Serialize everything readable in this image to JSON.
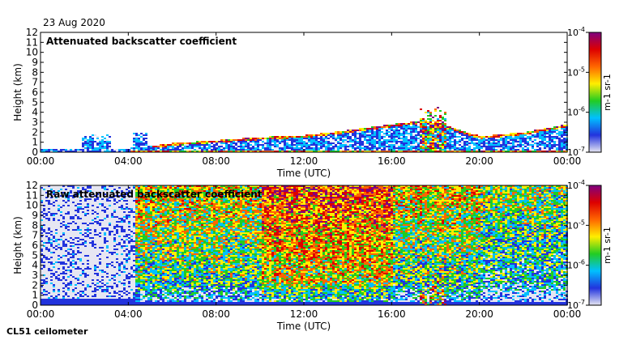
{
  "figure": {
    "date": "23 Aug 2020",
    "instrument": "CL51 ceilometer"
  },
  "chart_data": [
    {
      "type": "heatmap",
      "title": "Attenuated backscatter coefficient",
      "xlabel": "Time (UTC)",
      "ylabel": "Height (km)",
      "x_ticks": [
        "00:00",
        "04:00",
        "08:00",
        "12:00",
        "16:00",
        "20:00",
        "00:00"
      ],
      "x_range_hours": [
        0,
        24
      ],
      "y_ticks": [
        0,
        1,
        2,
        3,
        4,
        5,
        6,
        7,
        8,
        9,
        10,
        11,
        12
      ],
      "ylim": [
        0,
        12
      ],
      "colorbar": {
        "scale": "log",
        "range": [
          "1e-7",
          "1e-4"
        ],
        "labels": [
          "10^-7",
          "10^-6",
          "10^-5",
          "10^-4"
        ],
        "units": "m^-1 sr^-1",
        "colors": [
          "#e6e6f2",
          "#2233dd",
          "#00c0ff",
          "#22cc22",
          "#ffee00",
          "#ff6600",
          "#dd0000",
          "#800080"
        ]
      },
      "boundary_layer_top_km": [
        [
          0,
          0.3
        ],
        [
          4,
          0.4
        ],
        [
          6,
          0.9
        ],
        [
          8,
          1.2
        ],
        [
          10,
          1.5
        ],
        [
          12,
          1.7
        ],
        [
          14,
          2.2
        ],
        [
          16,
          2.8
        ],
        [
          17.5,
          3.2
        ],
        [
          18.5,
          2.6
        ],
        [
          20,
          1.6
        ],
        [
          22,
          2.0
        ],
        [
          24,
          2.8
        ]
      ],
      "low_aerosol_patches": [
        {
          "start_hour": 1.8,
          "end_hour": 3.2,
          "top_km": 1.8
        },
        {
          "start_hour": 4.1,
          "end_hour": 4.8,
          "top_km": 2.3
        }
      ],
      "cloud_events": [
        {
          "start_hour": 17.2,
          "end_hour": 18.4,
          "base_km": 0.1,
          "top_km": 4.8
        }
      ]
    },
    {
      "type": "heatmap",
      "title": "Raw attenuated backscatter coefficient",
      "xlabel": "Time (UTC)",
      "ylabel": "Height (km)",
      "x_ticks": [
        "00:00",
        "04:00",
        "08:00",
        "12:00",
        "16:00",
        "20:00",
        "00:00"
      ],
      "x_range_hours": [
        0,
        24
      ],
      "y_ticks": [
        0,
        1,
        2,
        3,
        4,
        5,
        6,
        7,
        8,
        9,
        10,
        11,
        12
      ],
      "ylim": [
        0,
        12
      ],
      "colorbar": {
        "scale": "log",
        "range": [
          "1e-7",
          "1e-4"
        ],
        "labels": [
          "10^-7",
          "10^-6",
          "10^-5",
          "10^-4"
        ],
        "units": "m^-1 sr^-1",
        "colors": [
          "#e6e6f2",
          "#2233dd",
          "#00c0ff",
          "#22cc22",
          "#ffee00",
          "#ff6600",
          "#dd0000",
          "#800080"
        ]
      },
      "night_background_hours": [
        0,
        4.3
      ],
      "daytime_noise_hours": [
        4.3,
        24
      ],
      "noise_peak_hours": [
        10,
        16
      ],
      "cloud_events": [
        {
          "start_hour": 17.2,
          "end_hour": 18.4,
          "base_km": 0.1,
          "top_km": 2.8
        }
      ]
    }
  ]
}
